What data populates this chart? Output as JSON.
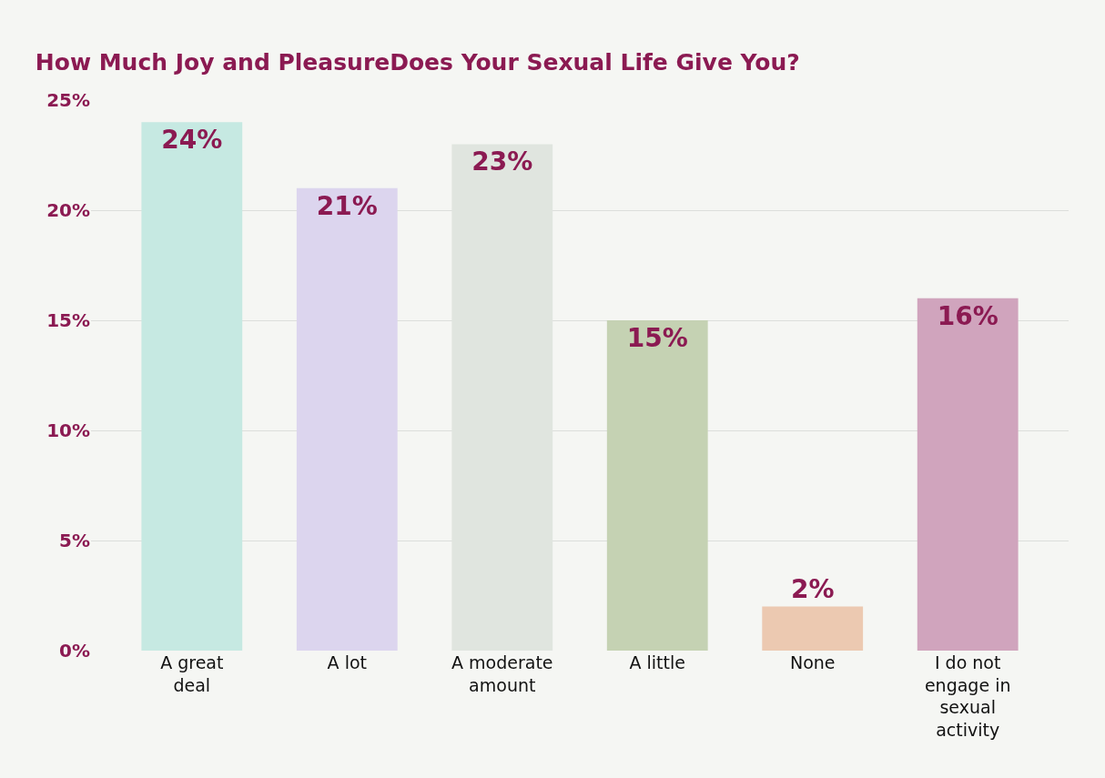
{
  "chart_data": {
    "type": "bar",
    "title": "How Much Joy and PleasureDoes Your Sexual Life Give You?",
    "categories": [
      "A great deal",
      "A lot",
      "A moderate amount",
      "A little",
      "None",
      "I do not engage in sexual activity"
    ],
    "values": [
      24,
      21,
      23,
      15,
      2,
      16
    ],
    "colors": [
      "#c6e9e2",
      "#dcd5ee",
      "#e0e5df",
      "#c5d2b3",
      "#ecc9b1",
      "#d0a4bd"
    ],
    "value_labels": [
      "24%",
      "21%",
      "23%",
      "15%",
      "2%",
      "16%"
    ],
    "ylim": [
      0,
      25
    ],
    "yticks": [
      {
        "value": 0,
        "label": "0%"
      },
      {
        "value": 5,
        "label": "5%"
      },
      {
        "value": 10,
        "label": "10%"
      },
      {
        "value": 15,
        "label": "15%"
      },
      {
        "value": 20,
        "label": "20%"
      },
      {
        "value": 25,
        "label": "25%"
      }
    ],
    "grid": "y"
  }
}
